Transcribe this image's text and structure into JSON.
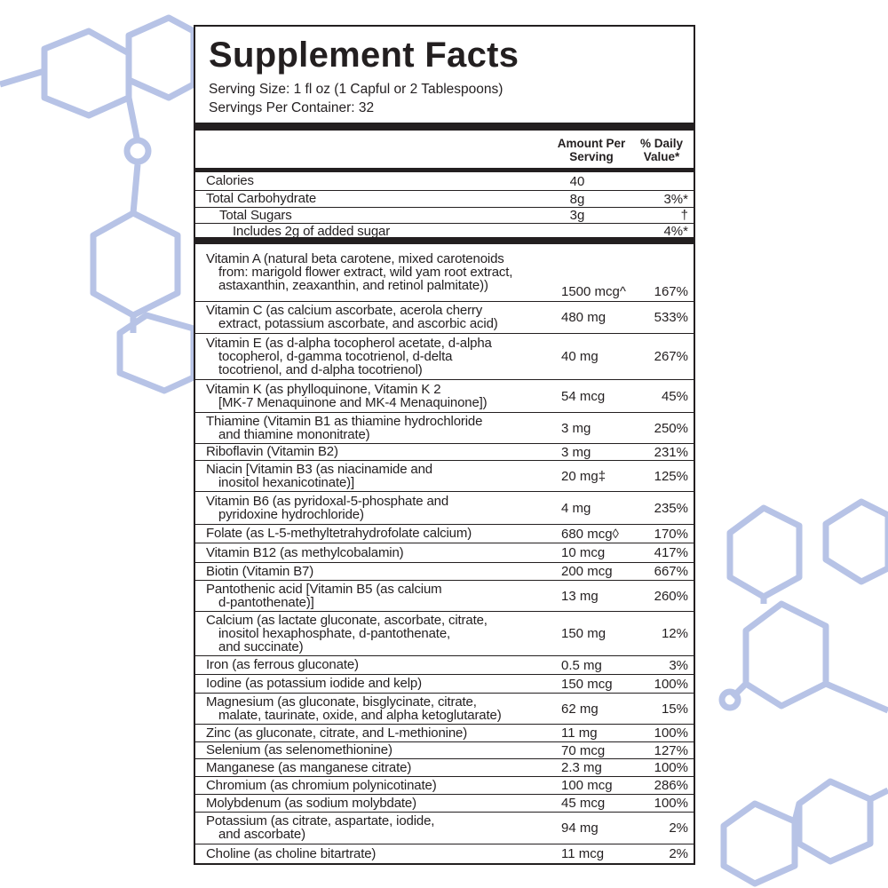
{
  "title": "Supplement Facts",
  "serving_size": "Serving Size: 1 fl oz (1 Capful or 2 Tablespoons)",
  "servings_per_container": "Servings Per Container: 32",
  "headers": {
    "amount": "Amount Per\nServing",
    "dv": "% Daily\nValue*"
  },
  "colors": {
    "text": "#231f20",
    "hexagon": "#b7c3e6"
  },
  "macros": [
    {
      "name": "Calories",
      "amount": "40",
      "dv": "",
      "indent": 0
    },
    {
      "name": "Total Carbohydrate",
      "amount": "8g",
      "dv": "3%*",
      "indent": 0
    },
    {
      "name": "Total Sugars",
      "amount": "3g",
      "dv": "†",
      "indent": 1
    },
    {
      "name": "Includes 2g of added sugar",
      "amount": "",
      "dv": "4%*",
      "indent": 2
    }
  ],
  "nutrients": [
    {
      "name": "Vitamin A (natural beta carotene, mixed carotenoids\nfrom: marigold flower extract, wild yam root extract,\nastaxanthin, zeaxanthin, and retinol palmitate))",
      "amount": "1500 mcg^",
      "dv": "167%"
    },
    {
      "name": "Vitamin C (as calcium ascorbate, acerola cherry\nextract, potassium ascorbate, and ascorbic acid)",
      "amount": "480 mg",
      "dv": "533%"
    },
    {
      "name": "Vitamin E (as d-alpha tocopherol acetate, d-alpha\ntocopherol, d-gamma tocotrienol, d-delta\ntocotrienol, and d-alpha tocotrienol)",
      "amount": "40 mg",
      "dv": "267%"
    },
    {
      "name": "Vitamin K (as phylloquinone, Vitamin K 2\n[MK-7 Menaquinone and MK-4 Menaquinone])",
      "amount": "54 mcg",
      "dv": "45%"
    },
    {
      "name": "Thiamine (Vitamin B1 as thiamine hydrochloride\nand thiamine mononitrate)",
      "amount": "3 mg",
      "dv": "250%"
    },
    {
      "name": "Riboflavin (Vitamin B2)",
      "amount": "3 mg",
      "dv": "231%"
    },
    {
      "name": "Niacin [Vitamin B3 (as niacinamide and\ninositol hexanicotinate)]",
      "amount": "20 mg‡",
      "dv": "125%"
    },
    {
      "name": "Vitamin B6 (as pyridoxal-5-phosphate and\npyridoxine hydrochloride)",
      "amount": "4 mg",
      "dv": "235%"
    },
    {
      "name": "Folate (as L-5-methyltetrahydrofolate calcium)",
      "amount": "680 mcg◊",
      "dv": "170%"
    },
    {
      "name": "Vitamin B12 (as methylcobalamin)",
      "amount": "10 mcg",
      "dv": "417%"
    },
    {
      "name": "Biotin (Vitamin B7)",
      "amount": "200 mcg",
      "dv": "667%"
    },
    {
      "name": "Pantothenic acid [Vitamin B5 (as calcium\nd-pantothenate)]",
      "amount": "13 mg",
      "dv": "260%"
    },
    {
      "name": "Calcium (as lactate gluconate, ascorbate, citrate,\ninositol hexaphosphate, d-pantothenate,\nand succinate)",
      "amount": "150 mg",
      "dv": "12%"
    },
    {
      "name": "Iron (as ferrous gluconate)",
      "amount": "0.5 mg",
      "dv": "3%"
    },
    {
      "name": "Iodine (as potassium iodide and kelp)",
      "amount": "150 mcg",
      "dv": "100%"
    },
    {
      "name": "Magnesium (as gluconate, bisglycinate, citrate,\nmalate, taurinate, oxide, and alpha ketoglutarate)",
      "amount": "62 mg",
      "dv": "15%"
    },
    {
      "name": "Zinc (as gluconate, citrate, and L-methionine)",
      "amount": "11 mg",
      "dv": "100%"
    },
    {
      "name": "Selenium (as selenomethionine)",
      "amount": "70 mcg",
      "dv": "127%"
    },
    {
      "name": "Manganese (as manganese citrate)",
      "amount": "2.3 mg",
      "dv": "100%"
    },
    {
      "name": "Chromium (as chromium polynicotinate)",
      "amount": "100 mcg",
      "dv": "286%"
    },
    {
      "name": "Molybdenum (as sodium molybdate)",
      "amount": "45 mcg",
      "dv": "100%"
    },
    {
      "name": "Potassium (as citrate, aspartate, iodide,\nand ascorbate)",
      "amount": "94 mg",
      "dv": "2%"
    },
    {
      "name": "Choline (as choline bitartrate)",
      "amount": "11 mcg",
      "dv": "2%"
    }
  ]
}
